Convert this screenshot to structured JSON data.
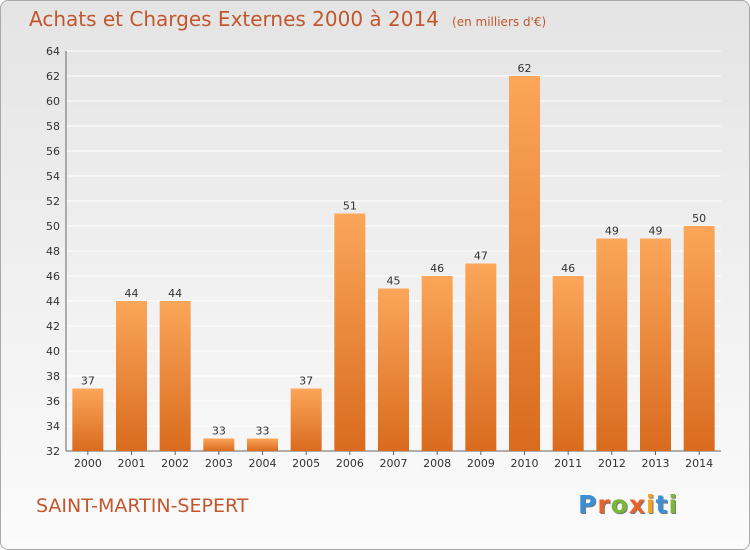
{
  "title": "Achats et Charges Externes 2000 à 2014",
  "unit": "(en milliers d'€)",
  "commune": "SAINT-MARTIN-SEPERT",
  "brand": {
    "letters": [
      "P",
      "r",
      "o",
      "x",
      "i",
      "t",
      "i"
    ],
    "colors": [
      "#3a8fd6",
      "#e8622c",
      "#7bb83a",
      "#e8622c",
      "#f2a51c",
      "#3a8fd6",
      "#7bb83a"
    ]
  },
  "colors": {
    "bar_top": "#fba65a",
    "bar_bottom": "#d96b1e",
    "grid": "#ffffff",
    "title": "#c2572d"
  },
  "chart_data": {
    "type": "bar",
    "categories": [
      "2000",
      "2001",
      "2002",
      "2003",
      "2004",
      "2005",
      "2006",
      "2007",
      "2008",
      "2009",
      "2010",
      "2011",
      "2012",
      "2013",
      "2014"
    ],
    "values": [
      37,
      44,
      44,
      33,
      33,
      37,
      51,
      45,
      46,
      47,
      62,
      46,
      49,
      49,
      50
    ],
    "ylim": [
      32,
      64
    ],
    "yticks": [
      32,
      34,
      36,
      38,
      40,
      42,
      44,
      46,
      48,
      50,
      52,
      54,
      56,
      58,
      60,
      62,
      64
    ],
    "grid": true,
    "data_labels": true
  }
}
